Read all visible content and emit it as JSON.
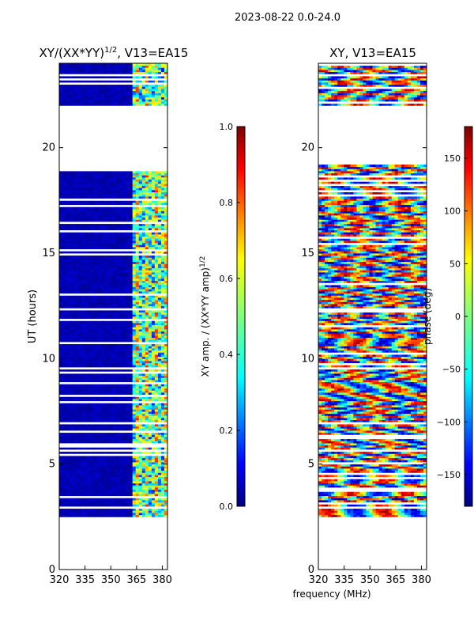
{
  "page": {
    "suptitle": "2023-08-22 0.0-24.0",
    "shared_xlabel": "frequency (MHz)"
  },
  "chart_data": [
    {
      "type": "heatmap",
      "title": "XY/(XX*YY)",
      "title_exp": "1/2",
      "title_suffix": ", V13=EA15",
      "xlabel": "",
      "ylabel": "UT (hours)",
      "xlim": [
        320,
        383
      ],
      "ylim": [
        0,
        24
      ],
      "xticks": [
        320,
        335,
        350,
        365,
        380
      ],
      "yticks": [
        0,
        5,
        10,
        15,
        20
      ],
      "data_extent_hours": [
        2.5,
        24.0
      ],
      "gap_hours": [
        19.2,
        22.0
      ],
      "colormap": "jet",
      "colorbar": {
        "label": "XY amp. / (XX*YY amp)",
        "label_exp": "1/2",
        "range": [
          0.0,
          1.0
        ],
        "ticks": [
          "0.0",
          "0.2",
          "0.4",
          "0.6",
          "0.8",
          "1.0"
        ]
      }
    },
    {
      "type": "heatmap",
      "title": "XY, V13=EA15",
      "xlabel": "frequency (MHz)",
      "ylabel": "",
      "xlim": [
        320,
        383
      ],
      "ylim": [
        0,
        24
      ],
      "xticks": [
        320,
        335,
        350,
        365,
        380
      ],
      "yticks": [
        0,
        5,
        10,
        15,
        20
      ],
      "data_extent_hours": [
        2.5,
        24.0
      ],
      "gap_hours": [
        19.2,
        22.0
      ],
      "colormap": "jet",
      "colorbar": {
        "label": "phase (deg)",
        "range": [
          -180,
          180
        ],
        "ticks": [
          "150",
          "100",
          "50",
          "0",
          "−50",
          "−100",
          "−150"
        ]
      }
    }
  ],
  "colors": {
    "jet": [
      "#00007f",
      "#0000ff",
      "#007fff",
      "#00ffff",
      "#7fff7f",
      "#ffff00",
      "#ff7f00",
      "#ff0000",
      "#7f0000"
    ],
    "axis": "#000000"
  }
}
